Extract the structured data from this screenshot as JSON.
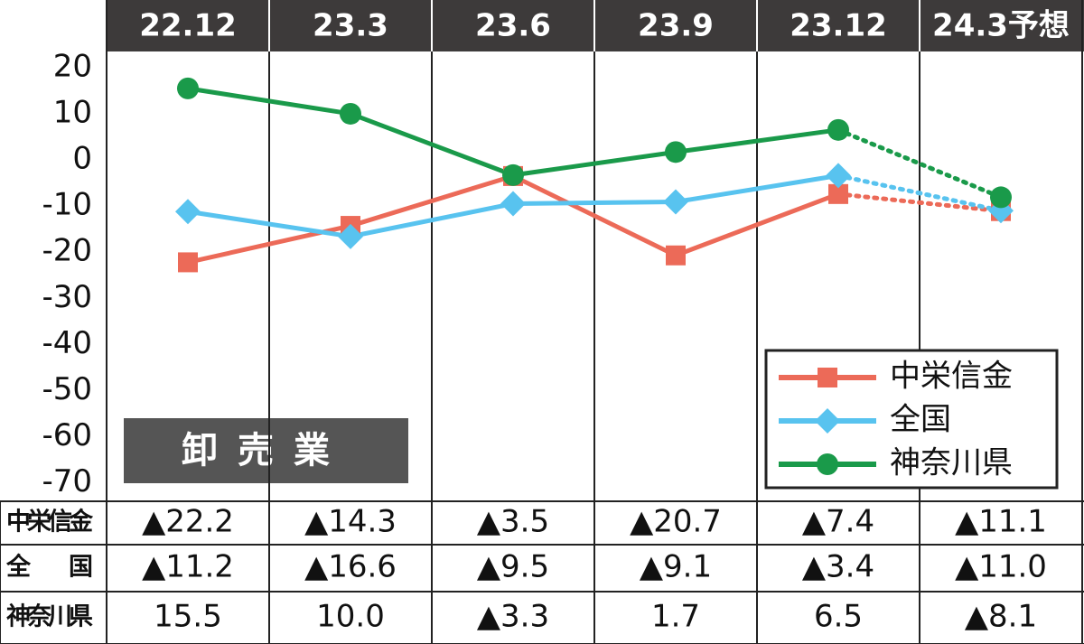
{
  "chart_data": {
    "type": "line",
    "label": "卸売業",
    "categories": [
      "22.12",
      "23.3",
      "23.6",
      "23.9",
      "23.12",
      "24.3予想"
    ],
    "ylim": [
      -74,
      23.5
    ],
    "yticks": [
      20,
      10,
      0,
      -10,
      -20,
      -30,
      -40,
      -50,
      -60,
      -70
    ],
    "dashed_from": 4,
    "series": [
      {
        "name": "中栄信金",
        "color": "#ec6a58",
        "marker": "square",
        "values": [
          -22.2,
          -14.3,
          -3.5,
          -20.7,
          -7.4,
          -11.1
        ],
        "value_labels": [
          "▲22.2",
          "▲14.3",
          "▲3.5",
          "▲20.7",
          "▲7.4",
          "▲11.1"
        ]
      },
      {
        "name": "全国",
        "color": "#58c3ef",
        "marker": "diamond",
        "values": [
          -11.2,
          -16.6,
          -9.5,
          -9.1,
          -3.4,
          -11.0
        ],
        "value_labels": [
          "▲11.2",
          "▲16.6",
          "▲9.5",
          "▲9.1",
          "▲3.4",
          "▲11.0"
        ]
      },
      {
        "name": "神奈川県",
        "color": "#1a9a4a",
        "marker": "circle",
        "values": [
          15.5,
          10.0,
          -3.3,
          1.7,
          6.5,
          -8.1
        ],
        "value_labels": [
          "15.5",
          "10.0",
          "▲3.3",
          "1.7",
          "6.5",
          "▲8.1"
        ]
      }
    ]
  }
}
